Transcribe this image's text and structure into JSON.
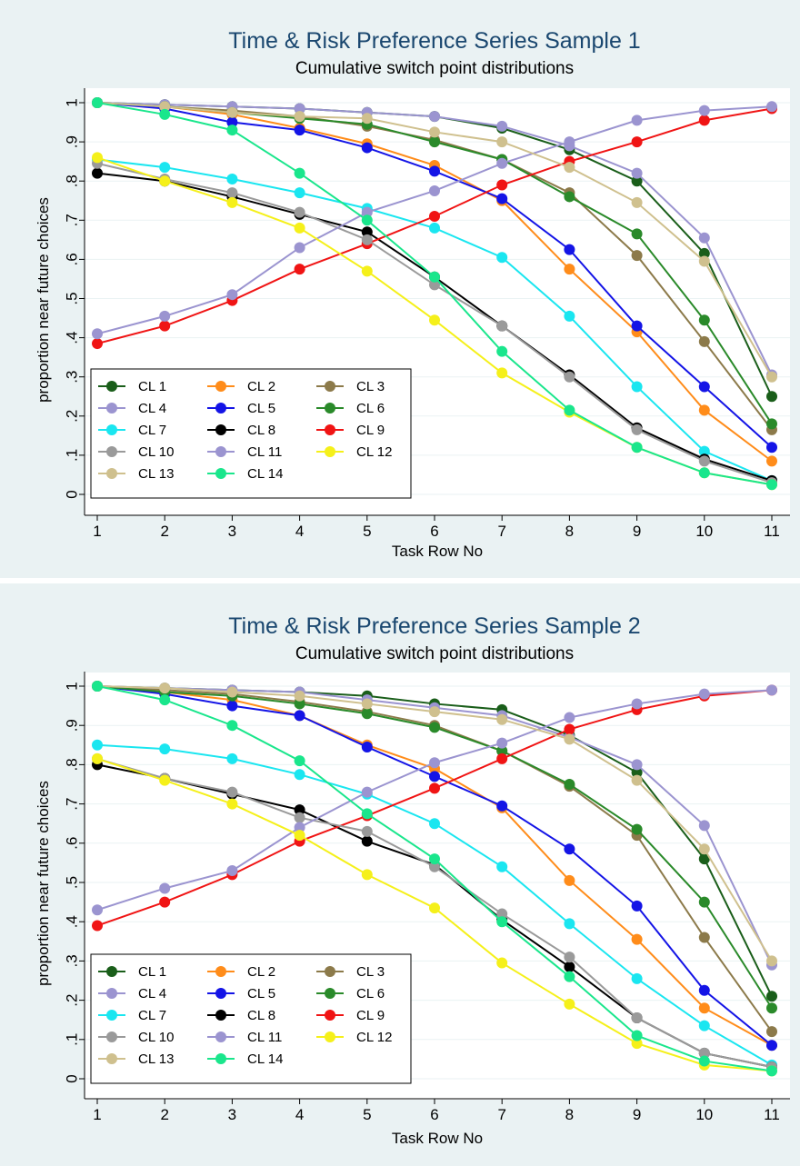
{
  "chart_data": [
    {
      "type": "line",
      "title": "Time & Risk Preference Series Sample 1",
      "subtitle": "Cumulative switch point distributions",
      "xlabel": "Task Row No",
      "ylabel": "proportion near future choices",
      "x": [
        1,
        2,
        3,
        4,
        5,
        6,
        7,
        8,
        9,
        10,
        11
      ],
      "xlim": [
        1,
        11
      ],
      "ylim": [
        0,
        1
      ],
      "yticks": [
        "0",
        ".1",
        ".2",
        ".3",
        ".4",
        ".5",
        ".6",
        ".7",
        ".8",
        ".9",
        "1"
      ],
      "legend_position": "bottom-left",
      "series": [
        {
          "name": "CL 1",
          "color": "#1a5e1a",
          "values": [
            1.0,
            0.995,
            0.99,
            0.985,
            0.975,
            0.965,
            0.935,
            0.88,
            0.8,
            0.615,
            0.25
          ]
        },
        {
          "name": "CL 2",
          "color": "#ff8c1a",
          "values": [
            1.0,
            0.99,
            0.97,
            0.935,
            0.895,
            0.84,
            0.75,
            0.575,
            0.415,
            0.215,
            0.085
          ]
        },
        {
          "name": "CL 3",
          "color": "#8c7a4a",
          "values": [
            1.0,
            0.99,
            0.98,
            0.965,
            0.94,
            0.905,
            0.855,
            0.77,
            0.61,
            0.39,
            0.165
          ]
        },
        {
          "name": "CL 4",
          "color": "#9b94d0",
          "values": [
            1.0,
            0.995,
            0.99,
            0.985,
            0.975,
            0.965,
            0.94,
            0.89,
            0.82,
            0.655,
            0.305
          ]
        },
        {
          "name": "CL 5",
          "color": "#1414e6",
          "values": [
            1.0,
            0.985,
            0.95,
            0.93,
            0.885,
            0.825,
            0.755,
            0.625,
            0.43,
            0.275,
            0.12
          ]
        },
        {
          "name": "CL 6",
          "color": "#2a8a2a",
          "values": [
            1.0,
            0.99,
            0.975,
            0.96,
            0.945,
            0.9,
            0.855,
            0.76,
            0.665,
            0.445,
            0.18
          ]
        },
        {
          "name": "CL 7",
          "color": "#1ae6f0",
          "values": [
            0.855,
            0.835,
            0.805,
            0.77,
            0.73,
            0.68,
            0.605,
            0.455,
            0.275,
            0.11,
            0.035
          ]
        },
        {
          "name": "CL 8",
          "color": "#000000",
          "values": [
            0.82,
            0.8,
            0.76,
            0.715,
            0.67,
            0.555,
            0.43,
            0.305,
            0.17,
            0.09,
            0.035
          ]
        },
        {
          "name": "CL 9",
          "color": "#f01414",
          "values": [
            0.385,
            0.43,
            0.495,
            0.575,
            0.64,
            0.71,
            0.79,
            0.85,
            0.9,
            0.955,
            0.985
          ]
        },
        {
          "name": "CL 10",
          "color": "#9a9a9a",
          "values": [
            0.845,
            0.805,
            0.77,
            0.72,
            0.65,
            0.535,
            0.43,
            0.3,
            0.165,
            0.085,
            0.03
          ]
        },
        {
          "name": "CL 11",
          "color": "#9b94d0",
          "values": [
            0.41,
            0.455,
            0.51,
            0.63,
            0.72,
            0.775,
            0.845,
            0.9,
            0.955,
            0.98,
            0.99
          ]
        },
        {
          "name": "CL 12",
          "color": "#f5f01a",
          "values": [
            0.86,
            0.8,
            0.745,
            0.68,
            0.57,
            0.445,
            0.31,
            0.21,
            0.12,
            0.055,
            0.025
          ]
        },
        {
          "name": "CL 13",
          "color": "#cfc08e",
          "values": [
            1.0,
            0.99,
            0.975,
            0.965,
            0.96,
            0.925,
            0.9,
            0.835,
            0.745,
            0.595,
            0.3
          ]
        },
        {
          "name": "CL 14",
          "color": "#1ae68c",
          "values": [
            1.0,
            0.97,
            0.93,
            0.82,
            0.7,
            0.555,
            0.365,
            0.215,
            0.12,
            0.055,
            0.025
          ]
        }
      ]
    },
    {
      "type": "line",
      "title": "Time & Risk Preference Series Sample 2",
      "subtitle": "Cumulative switch point distributions",
      "xlabel": "Task Row No",
      "ylabel": "proportion near future choices",
      "x": [
        1,
        2,
        3,
        4,
        5,
        6,
        7,
        8,
        9,
        10,
        11
      ],
      "xlim": [
        1,
        11
      ],
      "ylim": [
        0,
        1
      ],
      "yticks": [
        "0",
        ".1",
        ".2",
        ".3",
        ".4",
        ".5",
        ".6",
        ".7",
        ".8",
        ".9",
        "1"
      ],
      "legend_position": "bottom-left",
      "series": [
        {
          "name": "CL 1",
          "color": "#1a5e1a",
          "values": [
            1.0,
            0.995,
            0.99,
            0.985,
            0.975,
            0.955,
            0.94,
            0.875,
            0.78,
            0.56,
            0.21
          ]
        },
        {
          "name": "CL 2",
          "color": "#ff8c1a",
          "values": [
            1.0,
            0.985,
            0.965,
            0.925,
            0.85,
            0.79,
            0.69,
            0.505,
            0.355,
            0.18,
            0.085
          ]
        },
        {
          "name": "CL 3",
          "color": "#8c7a4a",
          "values": [
            1.0,
            0.99,
            0.98,
            0.96,
            0.935,
            0.9,
            0.835,
            0.745,
            0.62,
            0.36,
            0.12
          ]
        },
        {
          "name": "CL 4",
          "color": "#9b94d0",
          "values": [
            1.0,
            0.995,
            0.99,
            0.985,
            0.965,
            0.945,
            0.925,
            0.87,
            0.8,
            0.645,
            0.29
          ]
        },
        {
          "name": "CL 5",
          "color": "#1414e6",
          "values": [
            1.0,
            0.98,
            0.95,
            0.925,
            0.845,
            0.77,
            0.695,
            0.585,
            0.44,
            0.225,
            0.085
          ]
        },
        {
          "name": "CL 6",
          "color": "#2a8a2a",
          "values": [
            1.0,
            0.985,
            0.975,
            0.955,
            0.93,
            0.895,
            0.835,
            0.75,
            0.635,
            0.45,
            0.18
          ]
        },
        {
          "name": "CL 7",
          "color": "#1ae6f0",
          "values": [
            0.85,
            0.84,
            0.815,
            0.775,
            0.725,
            0.65,
            0.54,
            0.395,
            0.255,
            0.135,
            0.035
          ]
        },
        {
          "name": "CL 8",
          "color": "#000000",
          "values": [
            0.8,
            0.765,
            0.725,
            0.685,
            0.605,
            0.545,
            0.405,
            0.285,
            0.155,
            0.065,
            0.03
          ]
        },
        {
          "name": "CL 9",
          "color": "#f01414",
          "values": [
            0.39,
            0.45,
            0.52,
            0.605,
            0.67,
            0.74,
            0.815,
            0.89,
            0.94,
            0.975,
            0.99
          ]
        },
        {
          "name": "CL 10",
          "color": "#9a9a9a",
          "values": [
            0.815,
            0.765,
            0.73,
            0.665,
            0.63,
            0.54,
            0.42,
            0.31,
            0.155,
            0.065,
            0.03
          ]
        },
        {
          "name": "CL 11",
          "color": "#9b94d0",
          "values": [
            0.43,
            0.485,
            0.53,
            0.64,
            0.73,
            0.805,
            0.855,
            0.92,
            0.955,
            0.98,
            0.99
          ]
        },
        {
          "name": "CL 12",
          "color": "#f5f01a",
          "values": [
            0.815,
            0.76,
            0.7,
            0.62,
            0.52,
            0.435,
            0.295,
            0.19,
            0.09,
            0.035,
            0.02
          ]
        },
        {
          "name": "CL 13",
          "color": "#cfc08e",
          "values": [
            1.0,
            0.995,
            0.985,
            0.975,
            0.955,
            0.935,
            0.915,
            0.865,
            0.76,
            0.585,
            0.3
          ]
        },
        {
          "name": "CL 14",
          "color": "#1ae68c",
          "values": [
            1.0,
            0.965,
            0.9,
            0.81,
            0.675,
            0.56,
            0.4,
            0.26,
            0.11,
            0.045,
            0.02
          ]
        }
      ]
    }
  ]
}
